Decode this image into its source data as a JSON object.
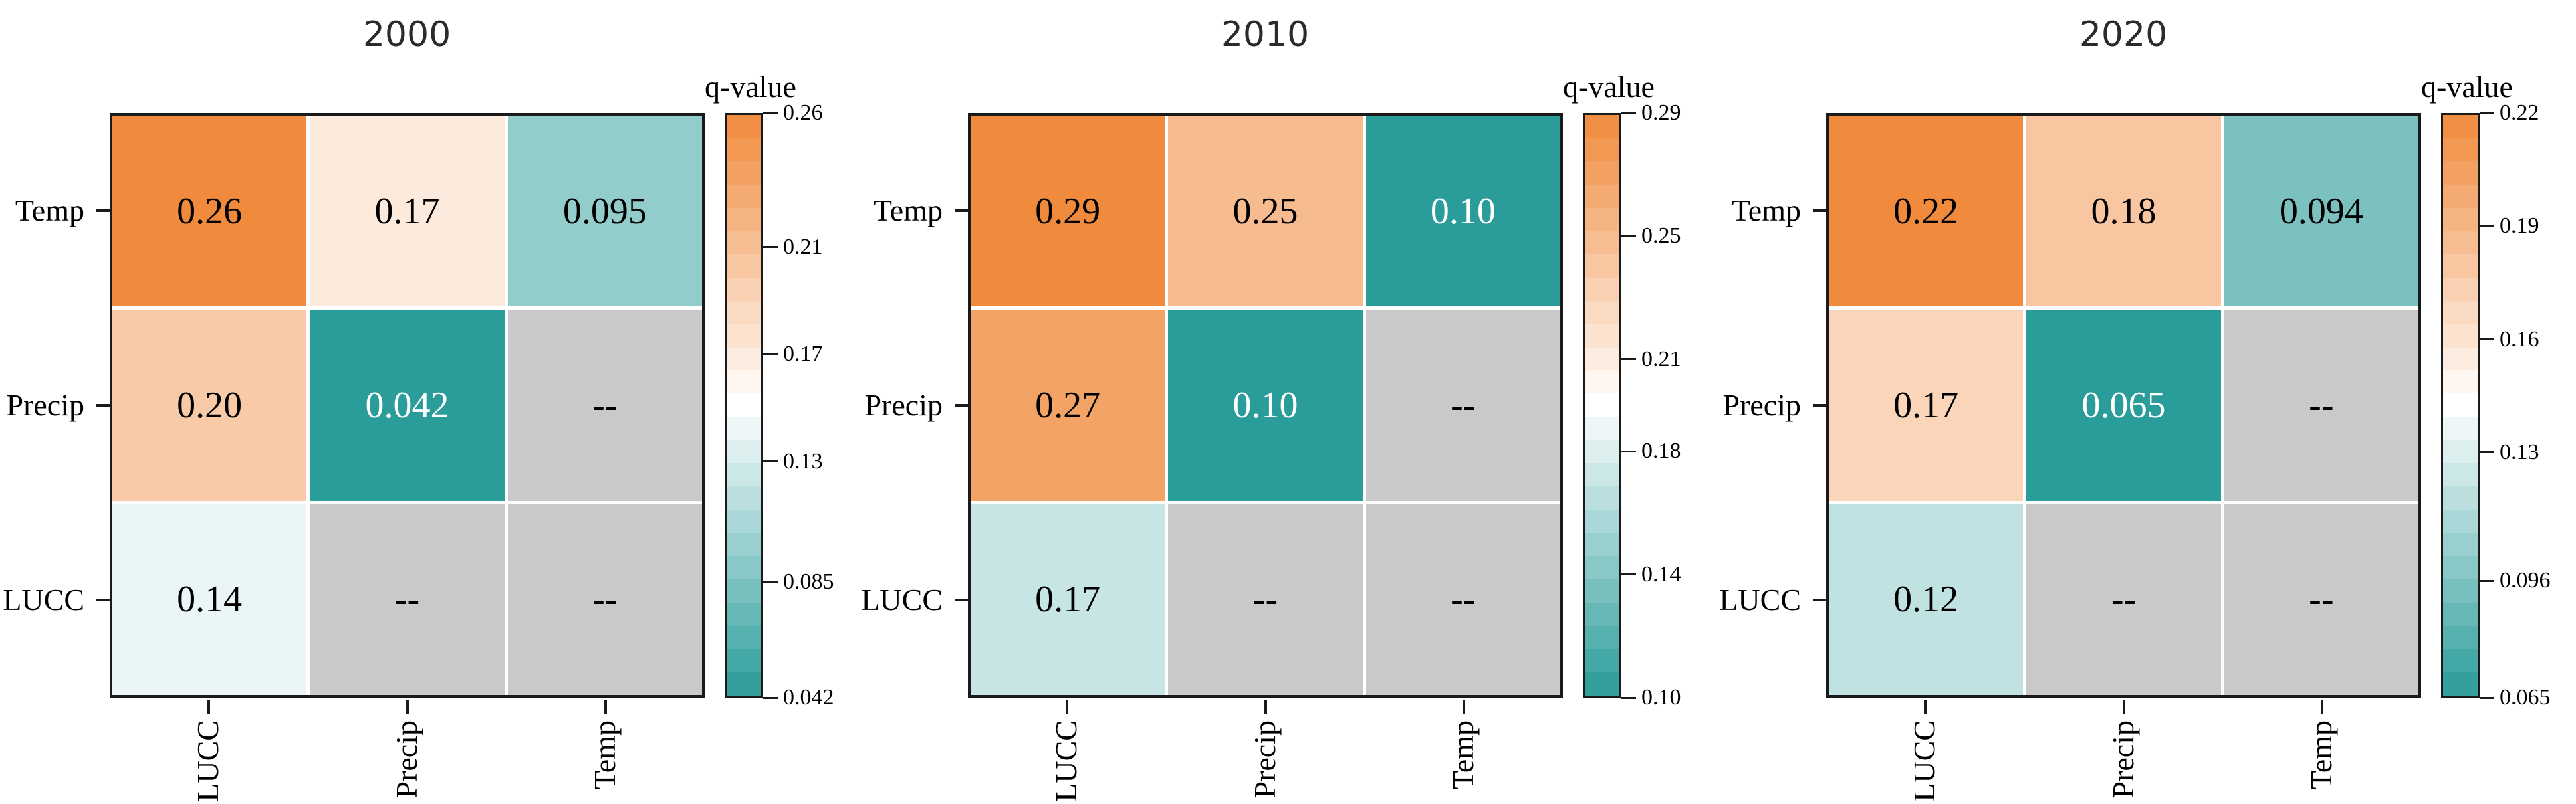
{
  "figure": {
    "colors": {
      "cmap_high": "#F08A3C",
      "cmap_mid": "#FFFFFF",
      "cmap_low": "#2A9C9A",
      "na_cell": "#C9C9C9",
      "frame": "#1A1A1A",
      "cell_text_dark": "#000000",
      "cell_text_light": "#FFFFFF"
    }
  },
  "chart_data": [
    {
      "type": "heatmap",
      "title": "2000",
      "rows": [
        "Temp",
        "Precip",
        "LUCC"
      ],
      "columns": [
        "LUCC",
        "Precip",
        "Temp"
      ],
      "values": [
        [
          0.26,
          0.17,
          0.095
        ],
        [
          0.2,
          0.042,
          null
        ],
        [
          0.14,
          null,
          null
        ]
      ],
      "labels": [
        [
          "0.26",
          "0.17",
          "0.095"
        ],
        [
          "0.20",
          "0.042",
          "--"
        ],
        [
          "0.14",
          "--",
          "--"
        ]
      ],
      "colorbar_label": "q-value",
      "colorbar_ticks": [
        "0.26",
        "0.21",
        "0.17",
        "0.13",
        "0.085",
        "0.042"
      ],
      "vmin": 0.042,
      "vmax": 0.26
    },
    {
      "type": "heatmap",
      "title": "2010",
      "rows": [
        "Temp",
        "Precip",
        "LUCC"
      ],
      "columns": [
        "LUCC",
        "Precip",
        "Temp"
      ],
      "values": [
        [
          0.29,
          0.25,
          0.1
        ],
        [
          0.27,
          0.1,
          null
        ],
        [
          0.17,
          null,
          null
        ]
      ],
      "labels": [
        [
          "0.29",
          "0.25",
          "0.10"
        ],
        [
          "0.27",
          "0.10",
          "--"
        ],
        [
          "0.17",
          "--",
          "--"
        ]
      ],
      "colorbar_label": "q-value",
      "colorbar_ticks": [
        "0.29",
        "0.25",
        "0.21",
        "0.18",
        "0.14",
        "0.10"
      ],
      "vmin": 0.1,
      "vmax": 0.29
    },
    {
      "type": "heatmap",
      "title": "2020",
      "rows": [
        "Temp",
        "Precip",
        "LUCC"
      ],
      "columns": [
        "LUCC",
        "Precip",
        "Temp"
      ],
      "values": [
        [
          0.22,
          0.18,
          0.094
        ],
        [
          0.17,
          0.065,
          null
        ],
        [
          0.12,
          null,
          null
        ]
      ],
      "labels": [
        [
          "0.22",
          "0.18",
          "0.094"
        ],
        [
          "0.17",
          "0.065",
          "--"
        ],
        [
          "0.12",
          "--",
          "--"
        ]
      ],
      "colorbar_label": "q-value",
      "colorbar_ticks": [
        "0.22",
        "0.19",
        "0.16",
        "0.13",
        "0.096",
        "0.065"
      ],
      "vmin": 0.065,
      "vmax": 0.22
    }
  ]
}
